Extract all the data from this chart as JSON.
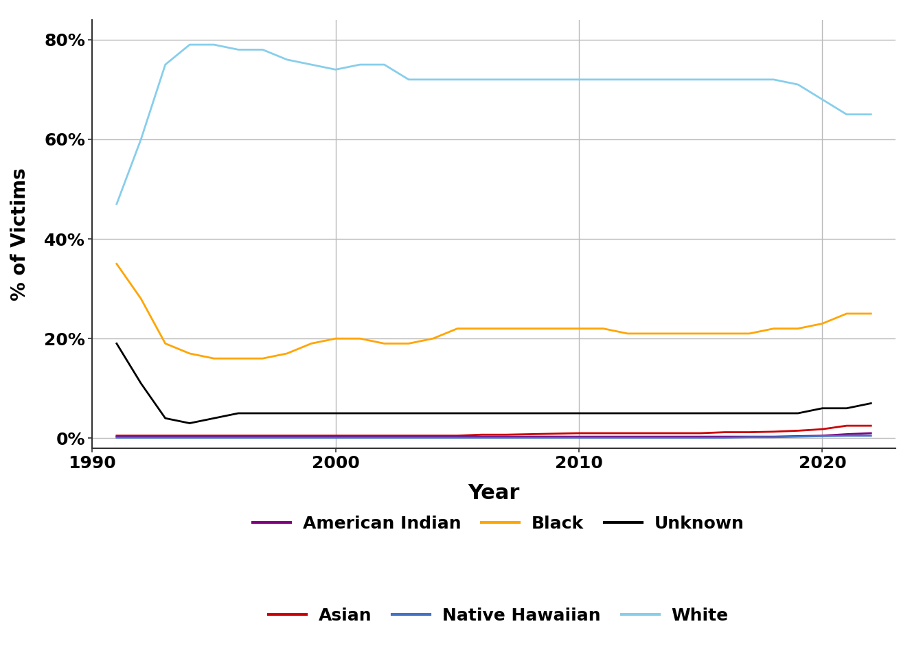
{
  "title": "",
  "xlabel": "Year",
  "ylabel": "% of Victims",
  "years": [
    1991,
    1992,
    1993,
    1994,
    1995,
    1996,
    1997,
    1998,
    1999,
    2000,
    2001,
    2002,
    2003,
    2004,
    2005,
    2006,
    2007,
    2008,
    2009,
    2010,
    2011,
    2012,
    2013,
    2014,
    2015,
    2016,
    2017,
    2018,
    2019,
    2020,
    2021,
    2022
  ],
  "white": [
    47,
    60,
    75,
    79,
    79,
    78,
    78,
    76,
    75,
    74,
    75,
    75,
    72,
    72,
    72,
    72,
    72,
    72,
    72,
    72,
    72,
    72,
    72,
    72,
    72,
    72,
    72,
    72,
    71,
    68,
    65,
    65
  ],
  "black": [
    35,
    28,
    19,
    17,
    16,
    16,
    16,
    17,
    19,
    20,
    20,
    19,
    19,
    20,
    22,
    22,
    22,
    22,
    22,
    22,
    22,
    21,
    21,
    21,
    21,
    21,
    21,
    22,
    22,
    23,
    25,
    25
  ],
  "unknown": [
    19,
    11,
    4,
    3,
    4,
    5,
    5,
    5,
    5,
    5,
    5,
    5,
    5,
    5,
    5,
    5,
    5,
    5,
    5,
    5,
    5,
    5,
    5,
    5,
    5,
    5,
    5,
    5,
    5,
    6,
    6,
    7
  ],
  "asian": [
    0.5,
    0.5,
    0.5,
    0.5,
    0.5,
    0.5,
    0.5,
    0.5,
    0.5,
    0.5,
    0.5,
    0.5,
    0.5,
    0.5,
    0.5,
    0.7,
    0.7,
    0.8,
    0.9,
    1.0,
    1.0,
    1.0,
    1.0,
    1.0,
    1.0,
    1.2,
    1.2,
    1.3,
    1.5,
    1.8,
    2.5,
    2.5
  ],
  "american_indian": [
    0.3,
    0.3,
    0.3,
    0.3,
    0.3,
    0.3,
    0.3,
    0.3,
    0.3,
    0.3,
    0.3,
    0.3,
    0.3,
    0.3,
    0.3,
    0.3,
    0.3,
    0.3,
    0.3,
    0.3,
    0.3,
    0.3,
    0.3,
    0.3,
    0.3,
    0.3,
    0.3,
    0.3,
    0.4,
    0.5,
    0.8,
    1.0
  ],
  "native_hawaiian": [
    0.1,
    0.1,
    0.1,
    0.1,
    0.1,
    0.1,
    0.1,
    0.1,
    0.1,
    0.1,
    0.1,
    0.1,
    0.1,
    0.1,
    0.1,
    0.1,
    0.1,
    0.1,
    0.1,
    0.1,
    0.1,
    0.1,
    0.1,
    0.1,
    0.1,
    0.1,
    0.2,
    0.2,
    0.3,
    0.4,
    0.5,
    0.5
  ],
  "colors": {
    "white": "#87CEEB",
    "black": "#FFA500",
    "unknown": "#000000",
    "asian": "#CC0000",
    "american_indian": "#800080",
    "native_hawaiian": "#4472C4"
  },
  "line_width": 2.0,
  "ylim": [
    -2,
    84
  ],
  "xlim": [
    1990,
    2023
  ],
  "yticks": [
    0,
    20,
    40,
    60,
    80
  ],
  "ytick_labels": [
    "0%",
    "20%",
    "40%",
    "60%",
    "80%"
  ],
  "xticks": [
    1990,
    2000,
    2010,
    2020
  ],
  "background_color": "#ffffff",
  "grid_color": "#bbbbbb",
  "legend_row1": [
    {
      "label": "American Indian",
      "color": "#800080"
    },
    {
      "label": "Black",
      "color": "#FFA500"
    },
    {
      "label": "Unknown",
      "color": "#000000"
    }
  ],
  "legend_row2": [
    {
      "label": "Asian",
      "color": "#CC0000"
    },
    {
      "label": "Native Hawaiian",
      "color": "#4472C4"
    },
    {
      "label": "White",
      "color": "#87CEEB"
    }
  ]
}
